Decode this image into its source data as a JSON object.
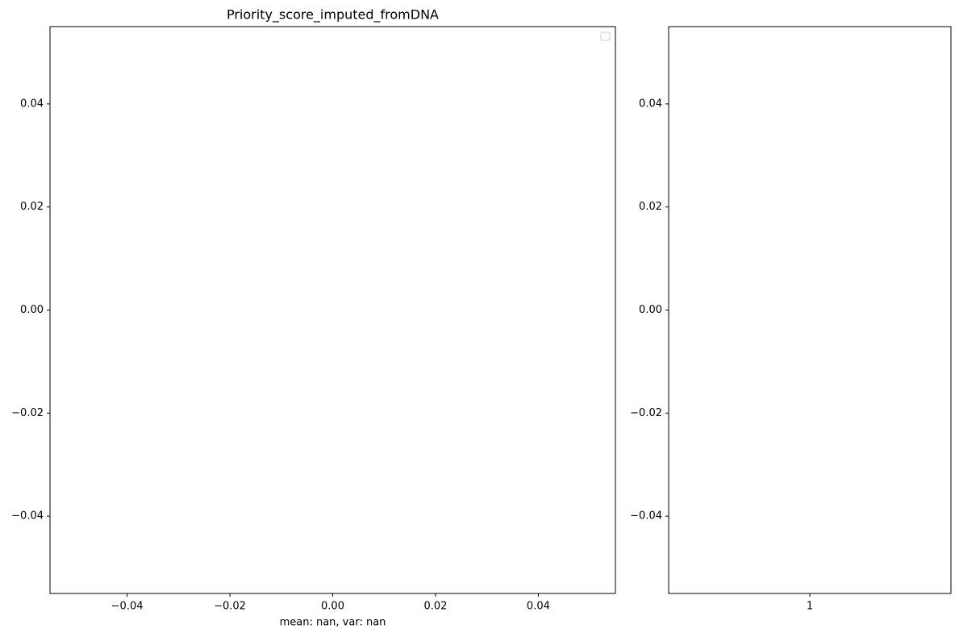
{
  "chart_data": [
    {
      "type": "line",
      "title": "Priority_score_imputed_fromDNA",
      "x_label": "mean: nan, var: nan",
      "series": [],
      "legend": "upper right",
      "xlim": [
        -0.055,
        0.055
      ],
      "xticks": [
        {
          "value": -0.04,
          "label": "−0.04"
        },
        {
          "value": -0.02,
          "label": "−0.02"
        },
        {
          "value": 0,
          "label": "0.00"
        },
        0.02,
        0.04
      ],
      "ylim": [
        -0.055,
        0.055
      ],
      "yticks": [
        {
          "value": -0.04,
          "label": "−0.04"
        },
        {
          "value": -0.02,
          "label": "−0.02"
        },
        {
          "value": 0,
          "label": "0.00"
        },
        0.02,
        0.04
      ]
    },
    {
      "type": "box",
      "categories": [
        "1"
      ],
      "xlim": [
        0.5,
        1.5
      ],
      "ylim": [
        -0.055,
        0.055
      ],
      "yticks": [
        {
          "value": -0.04,
          "label": "−0.04"
        },
        {
          "value": -0.02,
          "label": "−0.02"
        },
        {
          "value": 0,
          "label": "0.00"
        },
        0.02,
        0.04
      ]
    }
  ]
}
